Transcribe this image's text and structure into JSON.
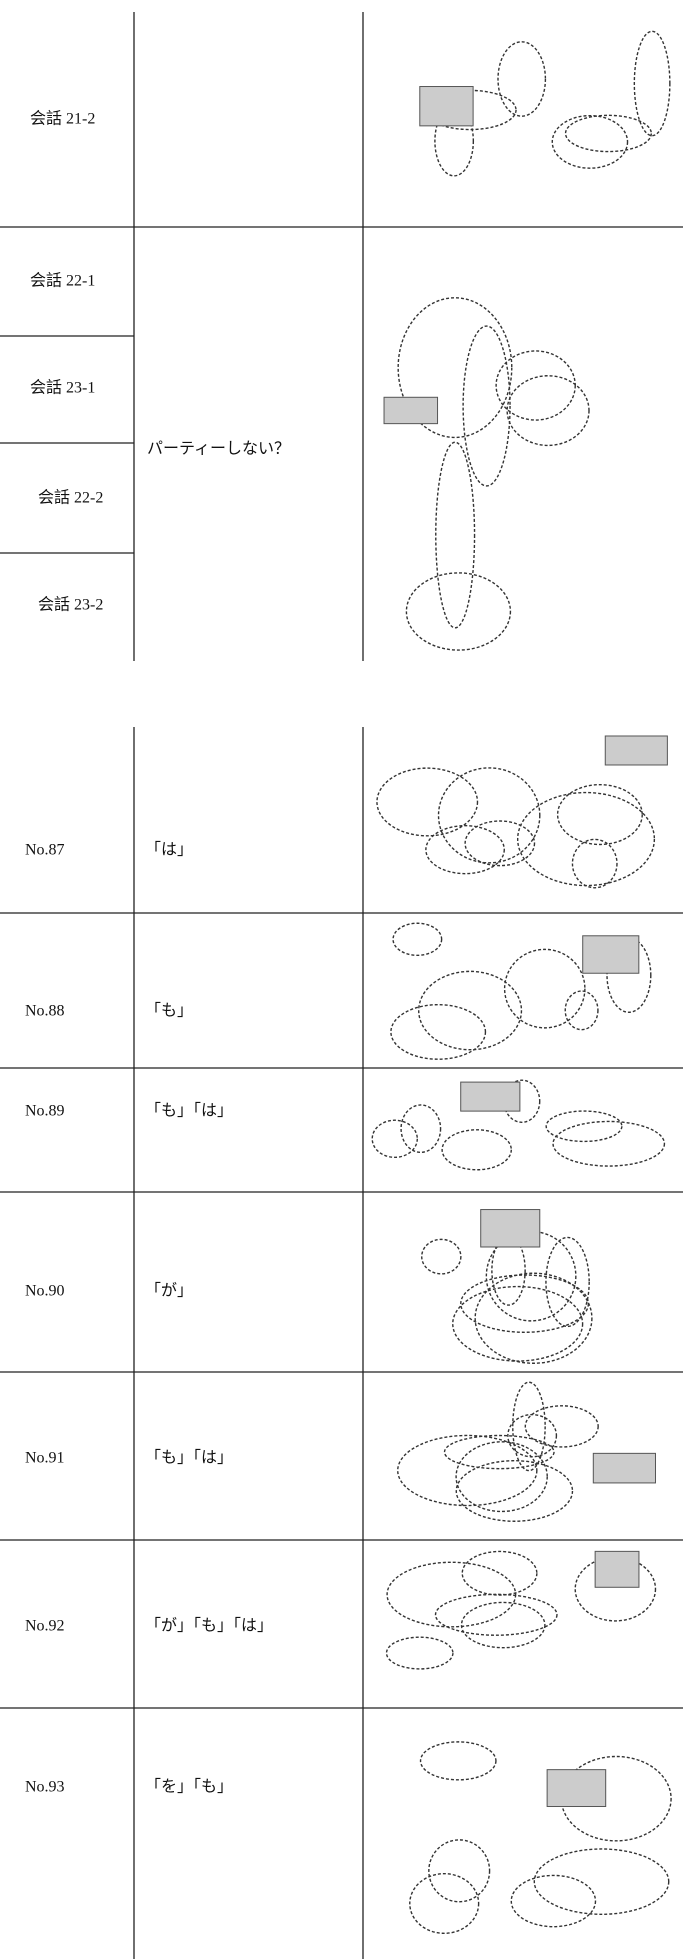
{
  "table1": {
    "row_labels": [
      "会話 21-2",
      "会話 22-1",
      "会話 23-1",
      "会話 22-2",
      "会話 23-2"
    ],
    "merged_text": "パーティーしない？"
  },
  "table2": {
    "rows": [
      [
        "No.87",
        "「は」"
      ],
      [
        "No.88",
        "「も」"
      ],
      [
        "No.89",
        "「も」「は」"
      ],
      [
        "No.90",
        "「が」"
      ],
      [
        "No.91",
        "「も」「は」"
      ],
      [
        "No.92",
        "「が」「も」「は」"
      ],
      [
        "No.93",
        "「を」「も」"
      ]
    ]
  }
}
